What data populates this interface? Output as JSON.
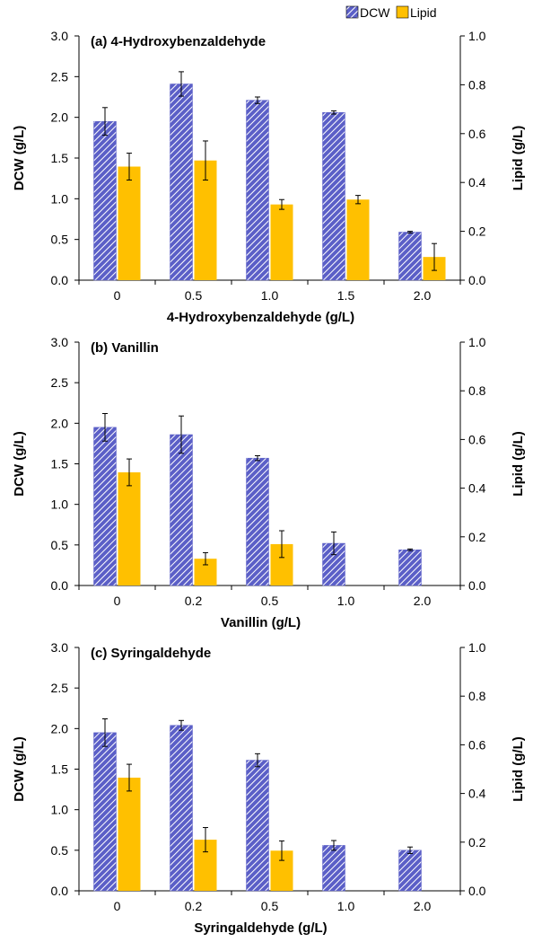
{
  "legend": {
    "dcw_label": "DCW",
    "lipid_label": "Lipid"
  },
  "colors": {
    "dcw_fill": "#5b5fc7",
    "dcw_stripe": "#ffffff",
    "lipid_fill": "#ffc000",
    "axis": "#000000"
  },
  "chart_data": [
    {
      "type": "bar",
      "title": "(a) 4-Hydroxybenzaldehyde",
      "xlabel": "4-Hydroxybenzaldehyde (g/L)",
      "ylabel": "DCW (g/L)",
      "y2label": "Lipid (g/L)",
      "categories": [
        "0",
        "0.5",
        "1.0",
        "1.5",
        "2.0"
      ],
      "ylim": [
        0,
        3.0
      ],
      "y2lim": [
        0,
        1.0
      ],
      "yticks": [
        "0.0",
        "0.5",
        "1.0",
        "1.5",
        "2.0",
        "2.5",
        "3.0"
      ],
      "y2ticks": [
        "0.0",
        "0.2",
        "0.4",
        "0.6",
        "0.8",
        "1.0"
      ],
      "series": [
        {
          "name": "DCW",
          "axis": "left",
          "values": [
            1.95,
            2.41,
            2.21,
            2.06,
            0.59
          ],
          "errors": [
            0.17,
            0.15,
            0.04,
            0.02,
            0.01
          ]
        },
        {
          "name": "Lipid",
          "axis": "right",
          "values": [
            0.465,
            0.49,
            0.31,
            0.33,
            0.095
          ],
          "errors": [
            0.055,
            0.08,
            0.02,
            0.017,
            0.055
          ]
        }
      ]
    },
    {
      "type": "bar",
      "title": "(b) Vanillin",
      "xlabel": "Vanillin (g/L)",
      "ylabel": "DCW (g/L)",
      "y2label": "Lipid (g/L)",
      "categories": [
        "0",
        "0.2",
        "0.5",
        "1.0",
        "2.0"
      ],
      "ylim": [
        0,
        3.0
      ],
      "y2lim": [
        0,
        1.0
      ],
      "yticks": [
        "0.0",
        "0.5",
        "1.0",
        "1.5",
        "2.0",
        "2.5",
        "3.0"
      ],
      "y2ticks": [
        "0.0",
        "0.2",
        "0.4",
        "0.6",
        "0.8",
        "1.0"
      ],
      "series": [
        {
          "name": "DCW",
          "axis": "left",
          "values": [
            1.95,
            1.86,
            1.57,
            0.52,
            0.44
          ],
          "errors": [
            0.17,
            0.23,
            0.03,
            0.14,
            0.01
          ]
        },
        {
          "name": "Lipid",
          "axis": "right",
          "values": [
            0.465,
            0.11,
            0.17,
            null,
            null
          ],
          "errors": [
            0.055,
            0.025,
            0.055,
            null,
            null
          ]
        }
      ]
    },
    {
      "type": "bar",
      "title": "(c) Syringaldehyde",
      "xlabel": "Syringaldehyde (g/L)",
      "ylabel": "DCW (g/L)",
      "y2label": "Lipid (g/L)",
      "categories": [
        "0",
        "0.2",
        "0.5",
        "1.0",
        "2.0"
      ],
      "ylim": [
        0,
        3.0
      ],
      "y2lim": [
        0,
        1.0
      ],
      "yticks": [
        "0.0",
        "0.5",
        "1.0",
        "1.5",
        "2.0",
        "2.5",
        "3.0"
      ],
      "y2ticks": [
        "0.0",
        "0.2",
        "0.4",
        "0.6",
        "0.8",
        "1.0"
      ],
      "series": [
        {
          "name": "DCW",
          "axis": "left",
          "values": [
            1.95,
            2.04,
            1.61,
            0.56,
            0.5
          ],
          "errors": [
            0.17,
            0.06,
            0.08,
            0.06,
            0.04
          ]
        },
        {
          "name": "Lipid",
          "axis": "right",
          "values": [
            0.465,
            0.21,
            0.165,
            null,
            null
          ],
          "errors": [
            0.055,
            0.05,
            0.04,
            null,
            null
          ]
        }
      ]
    }
  ]
}
